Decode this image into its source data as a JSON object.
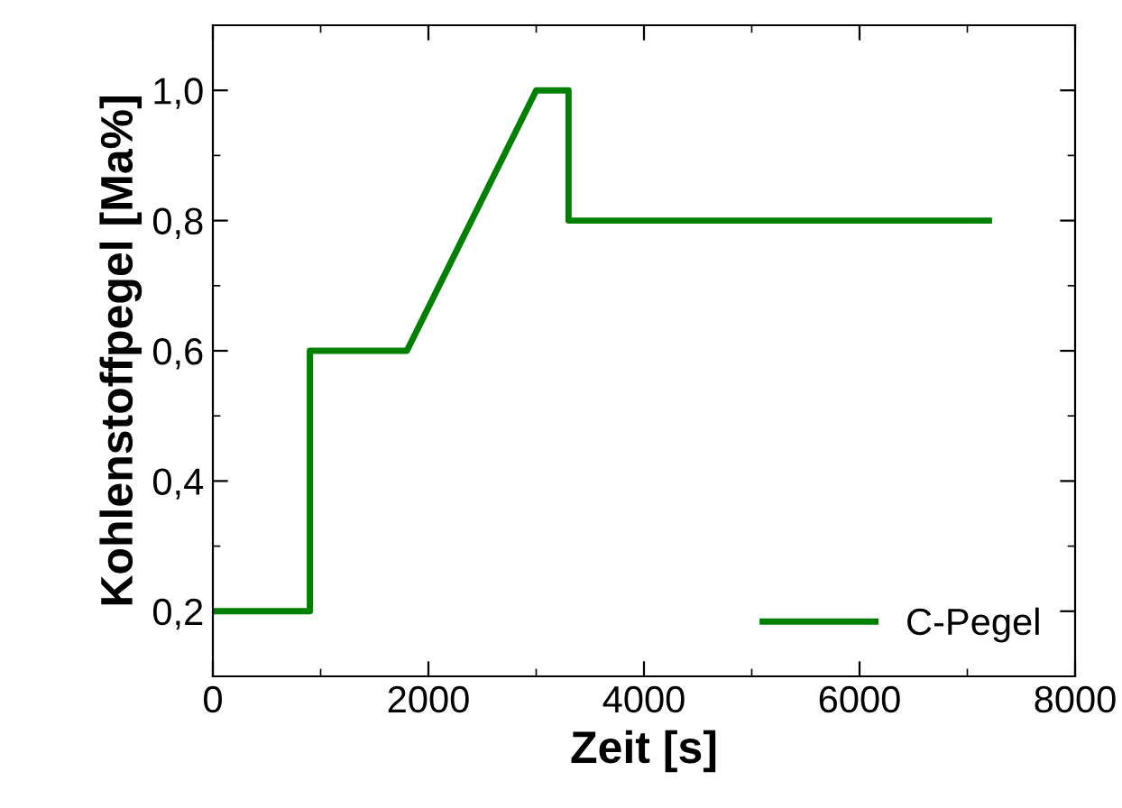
{
  "chart_data": {
    "type": "line",
    "xlabel": "Zeit [s]",
    "ylabel": "Kohlenstoffpegel [Ma%]",
    "series": [
      {
        "name": "C-Pegel",
        "color": "#008000",
        "x": [
          0,
          900,
          900,
          1800,
          3000,
          3300,
          3300,
          7200
        ],
        "values": [
          0.2,
          0.2,
          0.6,
          0.6,
          1.0,
          1.0,
          0.8,
          0.8
        ]
      }
    ],
    "xlim": [
      0,
      8000
    ],
    "xticks": [
      0,
      2000,
      4000,
      6000,
      8000
    ],
    "ylim": [
      0.1,
      1.1
    ],
    "yticks": [
      {
        "value": 0.2,
        "label": "0,2"
      },
      {
        "value": 0.4,
        "label": "0,4"
      },
      {
        "value": 0.6,
        "label": "0,6"
      },
      {
        "value": 0.8,
        "label": "0,8"
      },
      {
        "value": 1.0,
        "label": "1,0"
      }
    ],
    "grid": false,
    "legend": "bottom right",
    "marker": "none",
    "line_style": "solid"
  }
}
